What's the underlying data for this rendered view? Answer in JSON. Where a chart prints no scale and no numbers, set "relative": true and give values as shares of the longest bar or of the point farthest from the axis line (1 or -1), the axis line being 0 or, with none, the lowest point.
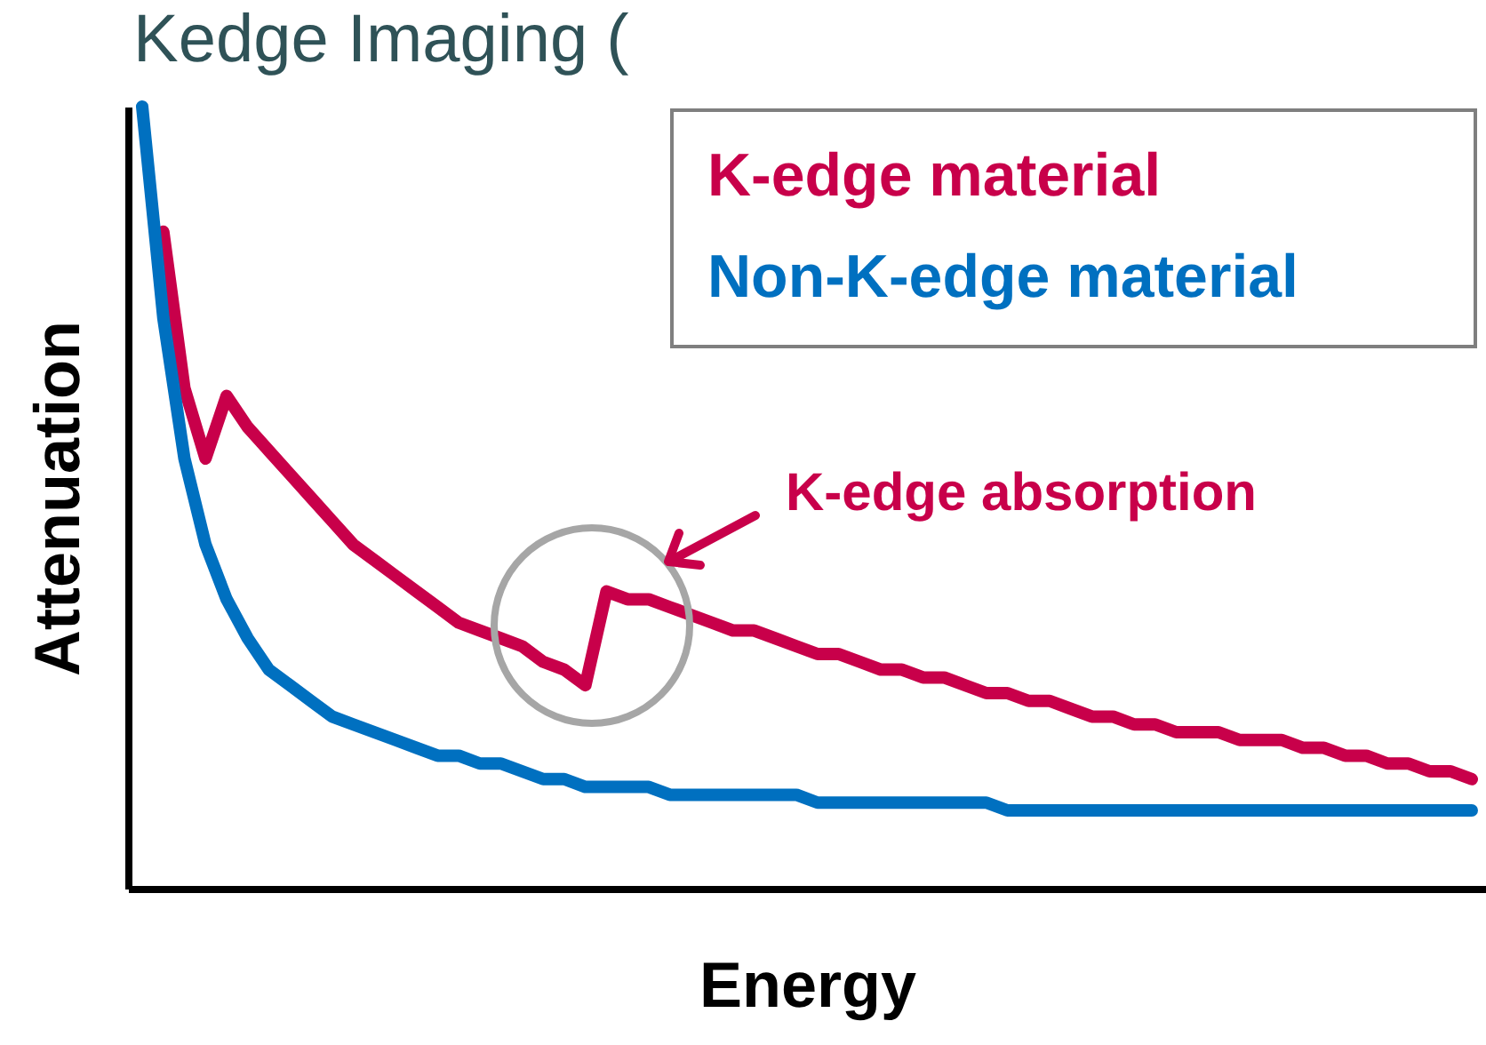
{
  "chart_data": {
    "type": "line",
    "title": "Kedge Imaging (",
    "xlabel": "Energy",
    "ylabel": "Attenuation",
    "relative": true,
    "marker": "none",
    "line_style": "solid",
    "annotations": [
      "K-edge absorption"
    ],
    "categories": [
      null,
      null,
      null,
      null,
      null,
      null,
      null,
      null,
      null,
      null,
      null,
      null,
      null,
      null,
      null,
      null,
      null,
      null,
      null,
      null,
      null,
      null,
      null,
      null,
      null,
      null,
      null,
      null,
      null,
      null,
      null,
      null,
      null,
      null,
      null,
      null,
      null,
      null,
      null,
      null,
      null,
      null,
      null,
      null,
      null,
      null,
      null,
      null,
      null,
      null,
      null,
      null,
      null,
      null,
      null,
      null,
      null,
      null,
      null,
      null,
      null,
      null,
      null,
      null
    ],
    "series": [
      {
        "name": "K-edge material",
        "color": "#c8004a",
        "values": [
          null,
          0.84,
          0.64,
          0.55,
          0.63,
          0.59,
          0.56,
          0.53,
          0.5,
          0.47,
          0.44,
          0.42,
          0.4,
          0.38,
          0.36,
          0.34,
          0.33,
          0.32,
          0.31,
          0.29,
          0.28,
          0.26,
          0.38,
          0.37,
          0.37,
          0.36,
          0.35,
          0.34,
          0.33,
          0.33,
          0.32,
          0.31,
          0.3,
          0.3,
          0.29,
          0.28,
          0.28,
          0.27,
          0.27,
          0.26,
          0.25,
          0.25,
          0.24,
          0.24,
          0.23,
          0.22,
          0.22,
          0.21,
          0.21,
          0.2,
          0.2,
          0.2,
          0.19,
          0.19,
          0.19,
          0.18,
          0.18,
          0.17,
          0.17,
          0.16,
          0.16,
          0.15,
          0.15,
          0.14
        ]
      },
      {
        "name": "Non-K-edge material",
        "color": "#0070c0",
        "values": [
          1.0,
          0.73,
          0.55,
          0.44,
          0.37,
          0.32,
          0.28,
          0.26,
          0.24,
          0.22,
          0.21,
          0.2,
          0.19,
          0.18,
          0.17,
          0.17,
          0.16,
          0.16,
          0.15,
          0.14,
          0.14,
          0.13,
          0.13,
          0.13,
          0.13,
          0.12,
          0.12,
          0.12,
          0.12,
          0.12,
          0.12,
          0.12,
          0.11,
          0.11,
          0.11,
          0.11,
          0.11,
          0.11,
          0.11,
          0.11,
          0.11,
          0.1,
          0.1,
          0.1,
          0.1,
          0.1,
          0.1,
          0.1,
          0.1,
          0.1,
          0.1,
          0.1,
          0.1,
          0.1,
          0.1,
          0.1,
          0.1,
          0.1,
          0.1,
          0.1,
          0.1,
          0.1,
          0.1,
          0.1
        ]
      }
    ]
  }
}
